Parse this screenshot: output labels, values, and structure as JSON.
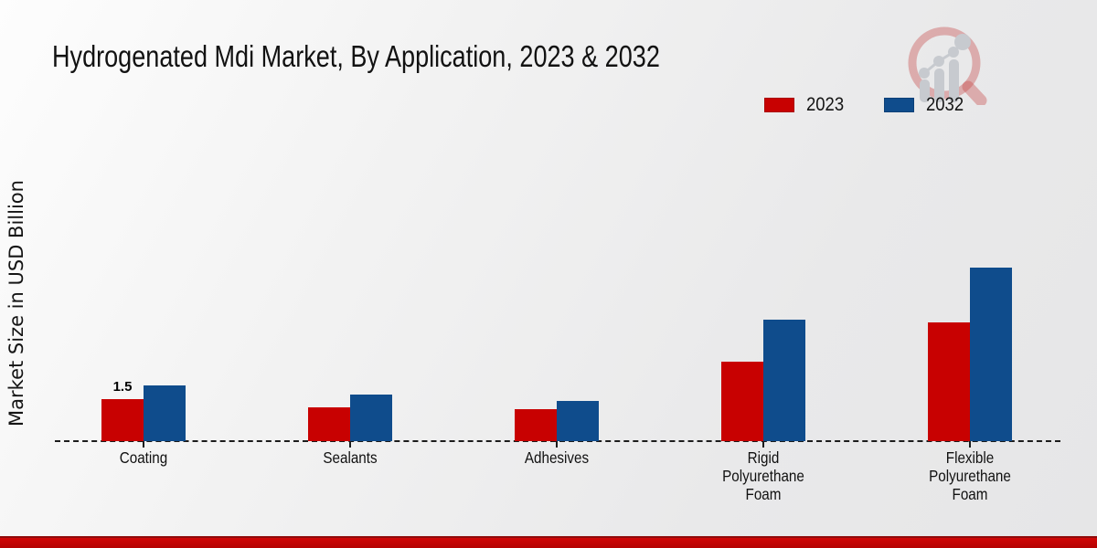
{
  "title": "Hydrogenated Mdi Market, By Application, 2023 & 2032",
  "y_axis_label": "Market Size in USD Billion",
  "legend": {
    "items": [
      {
        "label": "2023",
        "color": "#c80101"
      },
      {
        "label": "2032",
        "color": "#0f4c8c"
      }
    ]
  },
  "branding": {
    "logo_icon": "magnifier-bar-chart-logo",
    "bottom_stripe_color": "#b40202"
  },
  "chart_data": {
    "type": "bar",
    "title": "Hydrogenated Mdi Market, By Application, 2023 & 2032",
    "xlabel": "",
    "ylabel": "Market Size in USD Billion",
    "categories": [
      "Coating",
      "Sealants",
      "Adhesives",
      "Rigid Polyurethane Foam",
      "Flexible Polyurethane Foam"
    ],
    "series": [
      {
        "name": "2023",
        "color": "#c80101",
        "values": [
          1.5,
          1.2,
          1.15,
          2.85,
          4.25
        ]
      },
      {
        "name": "2032",
        "color": "#0f4c8c",
        "values": [
          2.0,
          1.65,
          1.45,
          4.35,
          6.2
        ]
      }
    ],
    "bar_labels": [
      {
        "category_index": 0,
        "series_index": 0,
        "text": "1.5"
      }
    ],
    "ylim": [
      0,
      7
    ],
    "grid": false,
    "axis_line_style": "dashed",
    "legend_position": "top-right"
  }
}
